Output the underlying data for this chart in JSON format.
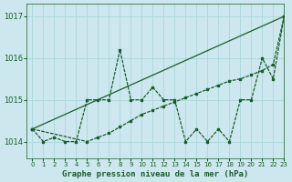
{
  "title": "Graphe pression niveau de la mer (hPa)",
  "xlim": [
    -0.5,
    23
  ],
  "ylim": [
    1013.6,
    1017.3
  ],
  "yticks": [
    1014,
    1015,
    1016,
    1017
  ],
  "xticks": [
    0,
    1,
    2,
    3,
    4,
    5,
    6,
    7,
    8,
    9,
    10,
    11,
    12,
    13,
    14,
    15,
    16,
    17,
    18,
    19,
    20,
    21,
    22,
    23
  ],
  "bg_color": "#cce8ee",
  "grid_color": "#b0d8de",
  "line_color": "#1a5c2a",
  "series1_x": [
    0,
    1,
    2,
    3,
    4,
    5,
    6,
    7,
    8,
    9,
    10,
    11,
    12,
    13,
    14,
    15,
    16,
    17,
    18,
    19,
    20,
    21,
    22,
    23
  ],
  "series1_y": [
    1014.3,
    1014.0,
    1014.1,
    1014.0,
    1014.0,
    1015.0,
    1015.0,
    1015.0,
    1016.2,
    1015.0,
    1015.0,
    1015.3,
    1015.0,
    1015.0,
    1014.0,
    1014.3,
    1014.0,
    1014.3,
    1014.0,
    1015.0,
    1015.0,
    1016.0,
    1015.5,
    1017.0
  ],
  "series2_x": [
    0,
    23
  ],
  "series2_y": [
    1014.3,
    1017.0
  ],
  "series3_x": [
    0,
    5,
    6,
    7,
    8,
    9,
    10,
    11,
    12,
    13,
    14,
    15,
    16,
    17,
    18,
    19,
    20,
    21,
    22,
    23
  ],
  "series3_y": [
    1014.3,
    1014.0,
    1014.1,
    1014.2,
    1014.35,
    1014.5,
    1014.65,
    1014.75,
    1014.85,
    1014.95,
    1015.05,
    1015.15,
    1015.25,
    1015.35,
    1015.45,
    1015.5,
    1015.6,
    1015.7,
    1015.85,
    1017.0
  ]
}
